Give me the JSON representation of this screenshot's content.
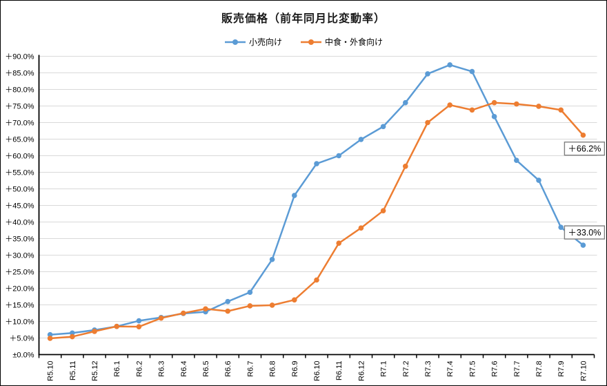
{
  "chart_data": {
    "type": "line",
    "title": "販売価格（前年同月比変動率）",
    "categories": [
      "R5.10",
      "R5.11",
      "R5.12",
      "R6.1",
      "R6.2",
      "R6.3",
      "R6.4",
      "R6.5",
      "R6.6",
      "R6.7",
      "R6.8",
      "R6.9",
      "R6.10",
      "R6.11",
      "R6.12",
      "R7.1",
      "R7.2",
      "R7.3",
      "R7.4",
      "R7.5",
      "R7.6",
      "R7.7",
      "R7.8",
      "R7.9",
      "R7.10"
    ],
    "series": [
      {
        "name": "小売向け",
        "color": "#5B9BD5",
        "values": [
          6.0,
          6.5,
          7.4,
          8.5,
          10.2,
          11.2,
          12.4,
          12.9,
          16.0,
          18.8,
          28.7,
          48.0,
          57.6,
          60.0,
          64.9,
          68.8,
          76.0,
          84.7,
          87.4,
          85.4,
          71.8,
          58.6,
          52.6,
          38.4,
          33.0
        ]
      },
      {
        "name": "中食・外食向け",
        "color": "#ED7D31",
        "values": [
          4.9,
          5.4,
          7.0,
          8.5,
          8.4,
          11.0,
          12.5,
          13.8,
          13.1,
          14.7,
          14.9,
          16.5,
          22.5,
          33.6,
          38.2,
          43.4,
          56.8,
          70.0,
          75.3,
          73.8,
          76.0,
          75.6,
          74.9,
          73.8,
          66.2
        ]
      }
    ],
    "ylim": [
      0,
      90
    ],
    "y_tick_step": 5,
    "y_tick_labels": [
      "±0.0%",
      "＋5.0%",
      "＋10.0%",
      "＋15.0%",
      "＋20.0%",
      "＋25.0%",
      "＋30.0%",
      "＋35.0%",
      "＋40.0%",
      "＋45.0%",
      "＋50.0%",
      "＋55.0%",
      "＋60.0%",
      "＋65.0%",
      "＋70.0%",
      "＋75.0%",
      "＋80.0%",
      "＋85.0%",
      "＋90.0%"
    ],
    "grid": "horizontal",
    "legend_position": "top",
    "annotations": [
      {
        "text": "＋33.0%",
        "series": 0,
        "point": 24,
        "position": "above-left"
      },
      {
        "text": "＋66.2%",
        "series": 1,
        "point": 24,
        "position": "below-left"
      }
    ],
    "colors": {
      "gridline": "#D9D9D9",
      "axis": "#000000",
      "tick_text": "#000000",
      "annotation_border": "#7F7F7F",
      "annotation_bg": "#FFFFFF"
    }
  }
}
